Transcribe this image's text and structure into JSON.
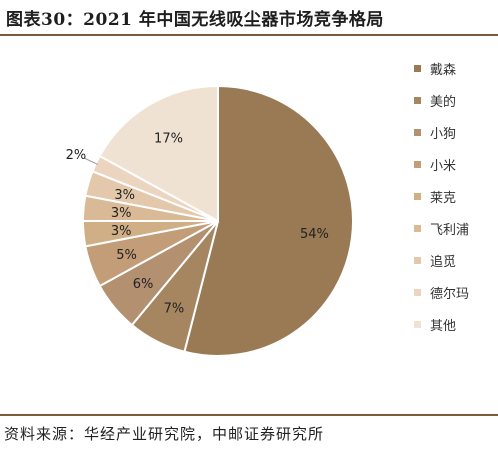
{
  "header": {
    "title": "图表30：2021 年中国无线吸尘器市场竞争格局"
  },
  "footer": {
    "source": "资料来源：华经产业研究院，中邮证券研究所"
  },
  "chart_data": {
    "type": "pie",
    "title": "",
    "legend_position": "right",
    "start_angle_deg": 0,
    "direction": "clockwise",
    "slices": [
      {
        "name": "戴森",
        "value": 54,
        "label": "54%",
        "color": "#9a7a54"
      },
      {
        "name": "美的",
        "value": 7,
        "label": "7%",
        "color": "#a68561"
      },
      {
        "name": "小狗",
        "value": 6,
        "label": "6%",
        "color": "#b39070"
      },
      {
        "name": "小米",
        "value": 5,
        "label": "5%",
        "color": "#c29d78"
      },
      {
        "name": "莱克",
        "value": 3,
        "label": "3%",
        "color": "#d0ae86"
      },
      {
        "name": "飞利浦",
        "value": 3,
        "label": "3%",
        "color": "#dab996"
      },
      {
        "name": "追觅",
        "value": 3,
        "label": "3%",
        "color": "#e3c8ab"
      },
      {
        "name": "德尔玛",
        "value": 2,
        "label": "2%",
        "color": "#ebd5bf"
      },
      {
        "name": "其他",
        "value": 17,
        "label": "17%",
        "color": "#f0e2d3"
      }
    ]
  }
}
